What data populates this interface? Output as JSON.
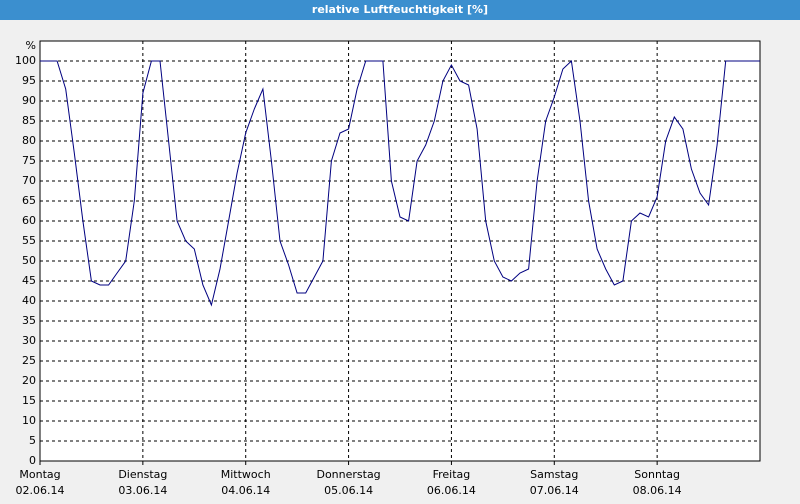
{
  "chart_data": {
    "type": "line",
    "title": "relative Luftfeuchtigkeit [%]",
    "y_label": "%",
    "xlim": [
      0,
      168
    ],
    "xticks": [
      {
        "value": 0,
        "label": "Montag",
        "sublabel": "02.06.14"
      },
      {
        "value": 24,
        "label": "Dienstag",
        "sublabel": "03.06.14"
      },
      {
        "value": 48,
        "label": "Mittwoch",
        "sublabel": "04.06.14"
      },
      {
        "value": 72,
        "label": "Donnerstag",
        "sublabel": "05.06.14"
      },
      {
        "value": 96,
        "label": "Freitag",
        "sublabel": "06.06.14"
      },
      {
        "value": 120,
        "label": "Samstag",
        "sublabel": "07.06.14"
      },
      {
        "value": 144,
        "label": "Sonntag",
        "sublabel": "08.06.14"
      }
    ],
    "ylim": [
      0,
      105
    ],
    "yticks": [
      0,
      5,
      10,
      15,
      20,
      25,
      30,
      35,
      40,
      45,
      50,
      55,
      60,
      65,
      70,
      75,
      80,
      85,
      90,
      95,
      100
    ],
    "grid": true,
    "x": [
      0,
      2,
      4,
      6,
      8,
      10,
      12,
      14,
      16,
      18,
      20,
      22,
      24,
      26,
      28,
      30,
      32,
      34,
      36,
      38,
      40,
      42,
      44,
      46,
      48,
      50,
      52,
      54,
      56,
      58,
      60,
      62,
      64,
      66,
      68,
      70,
      72,
      74,
      76,
      78,
      80,
      82,
      84,
      86,
      88,
      90,
      92,
      94,
      96,
      98,
      100,
      102,
      104,
      106,
      108,
      110,
      112,
      114,
      116,
      118,
      120,
      122,
      124,
      126,
      128,
      130,
      132,
      134,
      136,
      138,
      140,
      142,
      144,
      146,
      148,
      150,
      152,
      154,
      156,
      158,
      160,
      162,
      164,
      166,
      168
    ],
    "series": [
      {
        "name": "relative Luftfeuchtigkeit",
        "color": "#000080",
        "values": [
          100,
          100,
          100,
          93,
          77,
          60,
          45,
          44,
          44,
          47,
          50,
          65,
          92,
          100,
          100,
          80,
          60,
          55,
          53,
          44,
          39,
          48,
          60,
          72,
          82,
          88,
          93,
          75,
          55,
          49,
          42,
          42,
          46,
          50,
          75,
          82,
          83,
          93,
          100,
          100,
          100,
          70,
          61,
          60,
          75,
          79,
          85,
          95,
          99,
          95,
          94,
          83,
          60,
          50,
          46,
          45,
          47,
          48,
          70,
          85,
          91,
          98,
          100,
          85,
          65,
          53,
          48,
          44,
          45,
          60,
          62,
          61,
          66,
          80,
          86,
          83,
          73,
          67,
          64,
          79,
          100,
          100,
          100,
          100,
          100
        ]
      }
    ]
  }
}
